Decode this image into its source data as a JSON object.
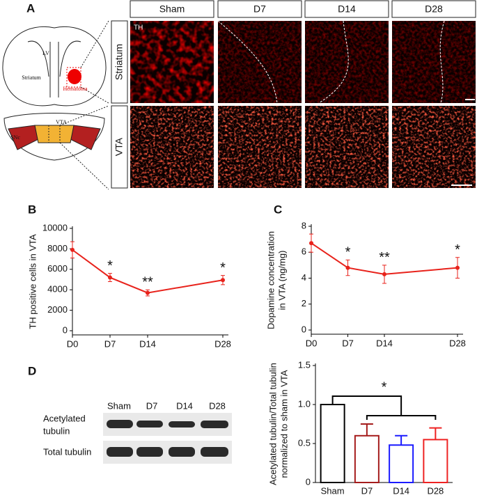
{
  "panel_a": {
    "label": "A",
    "columns": [
      "Sham",
      "D7",
      "D14",
      "D28"
    ],
    "rows": [
      "Striatum",
      "VTA"
    ],
    "stain": "TH",
    "diagram": {
      "striatum": "Striatum",
      "hematoma": "Hematoma",
      "lv": "LV",
      "snc": "SNc",
      "vta": "VTA"
    }
  },
  "panel_d_blot": {
    "label": "D",
    "lanes": [
      "Sham",
      "D7",
      "D14",
      "D28"
    ],
    "rows": [
      [
        "Acetylated",
        "tubulin"
      ],
      [
        "Total tubulin"
      ]
    ]
  },
  "chart_data": [
    {
      "type": "line",
      "panel_label": "B",
      "ylabel": [
        "TH positive cells in VTA"
      ],
      "color": "#e8221b",
      "x": [
        0,
        7,
        14,
        28
      ],
      "values": [
        7900,
        5200,
        3700,
        4950
      ],
      "errors": [
        800,
        400,
        300,
        450
      ],
      "significance": [
        null,
        "*",
        "**",
        "*"
      ],
      "xlim": [
        0,
        28
      ],
      "xticks": [
        {
          "value": 0,
          "label": "D0"
        },
        {
          "value": 7,
          "label": "D7"
        },
        {
          "value": 14,
          "label": "D14"
        },
        {
          "value": 28,
          "label": "D28"
        }
      ],
      "ylim": [
        0,
        10000
      ],
      "yticks": [
        0,
        2000,
        4000,
        6000,
        8000,
        10000
      ]
    },
    {
      "type": "line",
      "panel_label": "C",
      "ylabel": [
        "Dopamine concentration",
        "in VTA (ng/mg)"
      ],
      "color": "#e8221b",
      "x": [
        0,
        7,
        14,
        28
      ],
      "values": [
        6.7,
        4.8,
        4.3,
        4.8
      ],
      "errors": [
        0.7,
        0.6,
        0.7,
        0.8
      ],
      "significance": [
        null,
        "*",
        "**",
        "*"
      ],
      "xlim": [
        0,
        28
      ],
      "xticks": [
        {
          "value": 0,
          "label": "D0"
        },
        {
          "value": 7,
          "label": "D7"
        },
        {
          "value": 14,
          "label": "D14"
        },
        {
          "value": 28,
          "label": "D28"
        }
      ],
      "ylim": [
        0,
        8
      ],
      "yticks": [
        0,
        2,
        4,
        6,
        8
      ]
    },
    {
      "type": "bar",
      "ylabel": [
        "Acetylated tubulin/Total tubulin",
        "normalized to sham in VTA"
      ],
      "categories": [
        "Sham",
        "D7",
        "D14",
        "D28"
      ],
      "values": [
        1.0,
        0.6,
        0.48,
        0.55
      ],
      "errors": [
        0,
        0.15,
        0.12,
        0.15
      ],
      "colors": [
        "#000000",
        "#a51c1c",
        "#1a1aff",
        "#ee2222"
      ],
      "annotation": "*",
      "ylim": [
        0,
        1.5
      ],
      "yticks": [
        0,
        0.5,
        {
          "value": 1,
          "label": "1.0"
        },
        1.5
      ]
    }
  ]
}
